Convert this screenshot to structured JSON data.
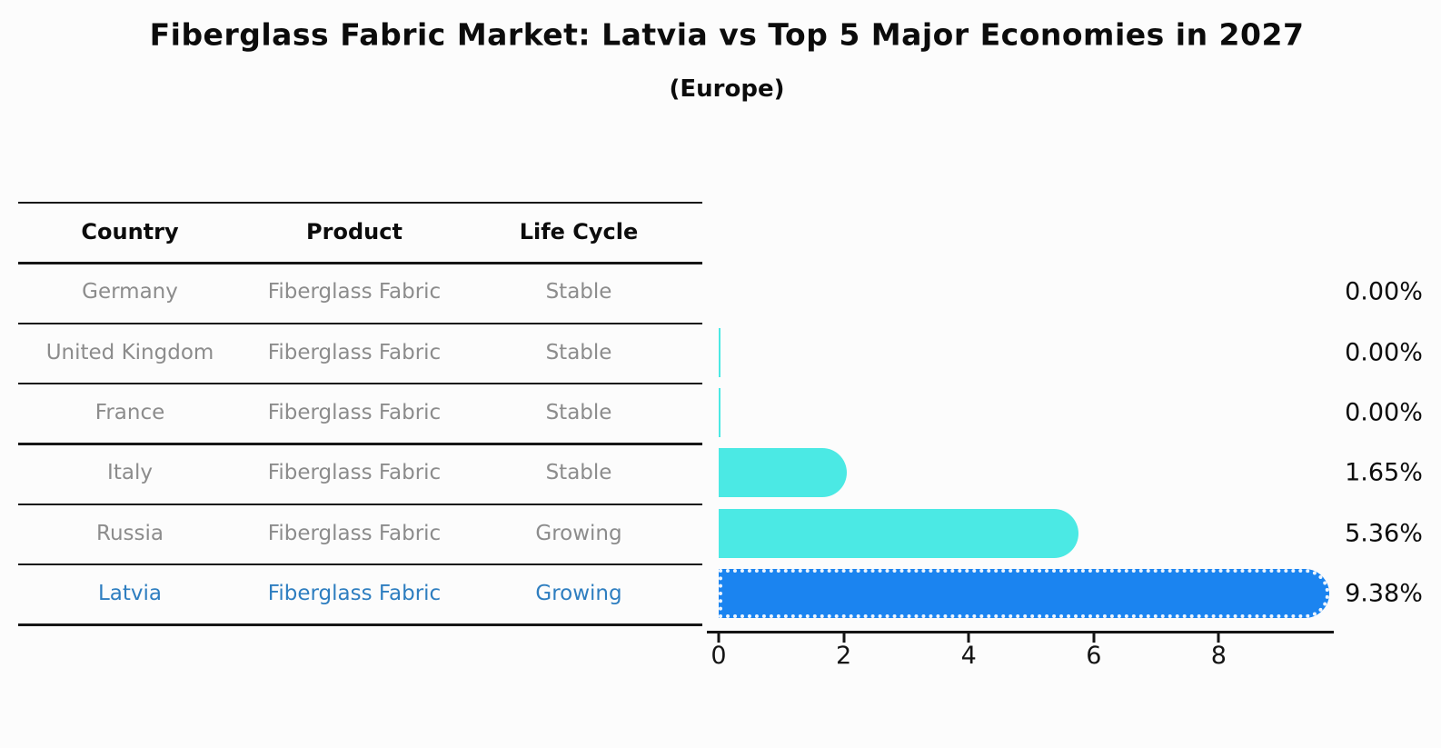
{
  "title": "Fiberglass Fabric Market: Latvia vs Top 5 Major Economies in 2027",
  "subtitle": "(Europe)",
  "table": {
    "headers": [
      "Country",
      "Product",
      "Life Cycle"
    ],
    "rows": [
      {
        "country": "Germany",
        "product": "Fiberglass Fabric",
        "life_cycle": "Stable",
        "highlight": false
      },
      {
        "country": "United Kingdom",
        "product": "Fiberglass Fabric",
        "life_cycle": "Stable",
        "highlight": false
      },
      {
        "country": "France",
        "product": "Fiberglass Fabric",
        "life_cycle": "Stable",
        "highlight": false
      },
      {
        "country": "Italy",
        "product": "Fiberglass Fabric",
        "life_cycle": "Stable",
        "highlight": false
      },
      {
        "country": "Russia",
        "product": "Fiberglass Fabric",
        "life_cycle": "Growing",
        "highlight": false
      },
      {
        "country": "Latvia",
        "product": "Fiberglass Fabric",
        "life_cycle": "Growing",
        "highlight": true
      }
    ]
  },
  "chart_data": {
    "type": "bar",
    "orientation": "horizontal",
    "title": "Fiberglass Fabric Market: Latvia vs Top 5 Major Economies in 2027 (Europe)",
    "categories": [
      "Germany",
      "United Kingdom",
      "France",
      "Italy",
      "Russia",
      "Latvia"
    ],
    "values": [
      0.0,
      0.0,
      0.0,
      1.65,
      5.36,
      9.38
    ],
    "value_labels": [
      "0.00%",
      "0.00%",
      "0.00%",
      "1.65%",
      "5.36%",
      "9.38%"
    ],
    "xticks": [
      "0",
      "2",
      "4",
      "6",
      "8"
    ],
    "xtick_values": [
      0,
      2,
      4,
      6,
      8
    ],
    "xlim": [
      0,
      9.85
    ],
    "grid": false,
    "legend": false,
    "bar_color": "#4BE9E4",
    "highlight_color": "#1B84F0",
    "highlight_index": 5,
    "thin_zero_bars": [
      "United Kingdom",
      "France"
    ]
  }
}
